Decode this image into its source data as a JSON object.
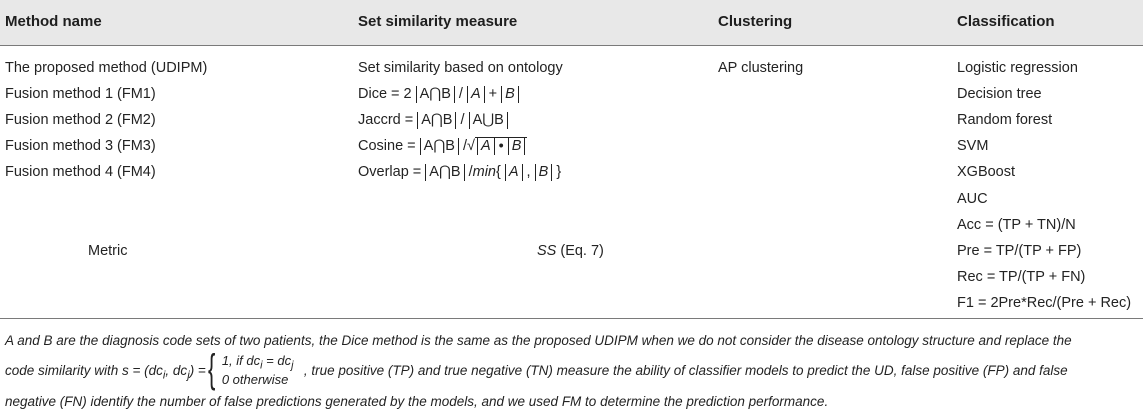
{
  "header": {
    "method": "Method name",
    "similarity": "Set similarity measure",
    "clustering": "Clustering",
    "classification": "Classification"
  },
  "rows": [
    {
      "method": "The proposed method (UDIPM)",
      "similarity_text": "Set similarity based on ontology",
      "clustering": "AP clustering",
      "classification": "Logistic regression"
    },
    {
      "method": "Fusion method 1 (FM1)",
      "similarity_text": "Dice = 2 |A⋂B| / |A| + |B|",
      "clustering": "",
      "classification": "Decision tree"
    },
    {
      "method": "Fusion method 2 (FM2)",
      "similarity_text": "Jaccrd = |A⋂B| / |A⋃B|",
      "clustering": "",
      "classification": "Random forest"
    },
    {
      "method": "Fusion method 3 (FM3)",
      "similarity_text": "Cosine = |A⋂B| /√|A| • |B|",
      "clustering": "",
      "classification": "SVM"
    },
    {
      "method": "Fusion method 4 (FM4)",
      "similarity_text": "Overlap = |A⋂B| /min{ |A| , |B| }",
      "clustering": "",
      "classification": "XGBoost"
    }
  ],
  "formula_parts": {
    "dice_prefix": "Dice = 2 ",
    "jaccard_prefix": "Jaccrd = ",
    "cosine_prefix": "Cosine = ",
    "overlap_prefix": "Overlap = ",
    "a_cap_b": "A⋂B",
    "a_cup_b": "A⋃B",
    "slash": " / ",
    "slash_tight": " /",
    "a": "A",
    "b": "B",
    "plus": " + ",
    "dot": " • ",
    "sqrt_sign": "√",
    "min": "min",
    "min_open": "{ ",
    "comma": " , ",
    "min_close": " }"
  },
  "metric": {
    "label": "Metric",
    "similarity": "SS",
    "similarity_suffix": " (Eq. 7)",
    "classification": [
      "AUC",
      "Acc = (TP + TN)/N",
      "Pre = TP/(TP + FP)",
      "Rec = TP/(TP + FN)",
      "F1 = 2Pre*Rec/(Pre + Rec)"
    ]
  },
  "footnote": {
    "line1": "A and B are the diagnosis code sets of two patients, the Dice method is the same as the proposed UDIPM when we do not consider the disease ontology structure and replace the",
    "line2_a": "code similarity with s = (dc",
    "line2_b": ", dc",
    "line2_c": ") =",
    "case1": "1,  if dc",
    "case1_eq": " = dc",
    "case2": "0   otherwise",
    "line2_d": ", true positive (TP) and true negative (TN) measure the ability of classifier models to predict the UD, false positive (FP) and false",
    "line3": "negative (FN) identify the number of false predictions generated by the models, and we used FM to determine the prediction performance.",
    "sub_i": "i",
    "sub_j": "j"
  }
}
